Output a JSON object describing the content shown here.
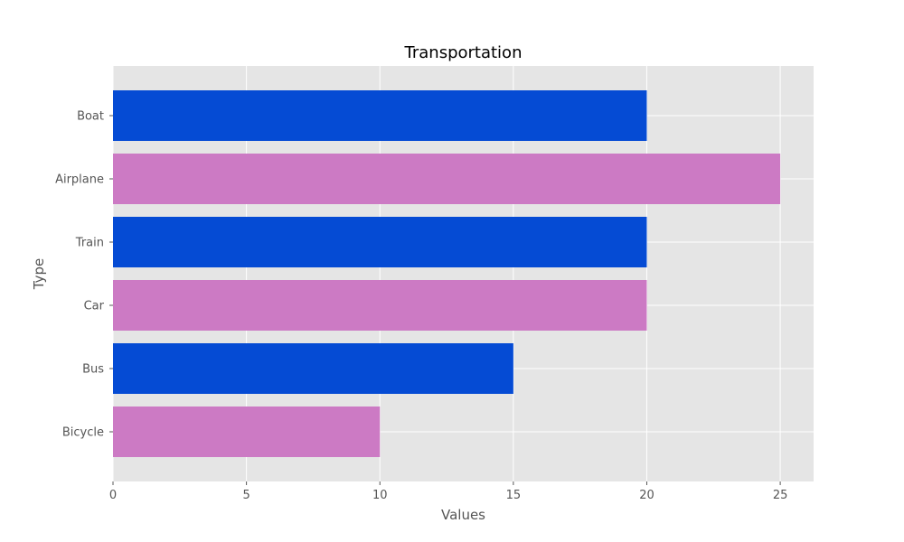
{
  "chart_data": {
    "type": "bar",
    "orientation": "horizontal",
    "title": "Transportation",
    "xlabel": "Values",
    "ylabel": "Type",
    "categories": [
      "Bicycle",
      "Bus",
      "Car",
      "Train",
      "Airplane",
      "Boat"
    ],
    "values": [
      10,
      15,
      20,
      20,
      25,
      20
    ],
    "bar_colors": [
      "#cc7ac4",
      "#054bd4",
      "#cc7ac4",
      "#054bd4",
      "#cc7ac4",
      "#054bd4"
    ],
    "xlim": [
      0,
      26.25
    ],
    "xticks": [
      "0",
      "5",
      "10",
      "15",
      "20",
      "25"
    ],
    "grid": true,
    "background_color": "#e5e5e5",
    "grid_color": "#ffffff"
  }
}
